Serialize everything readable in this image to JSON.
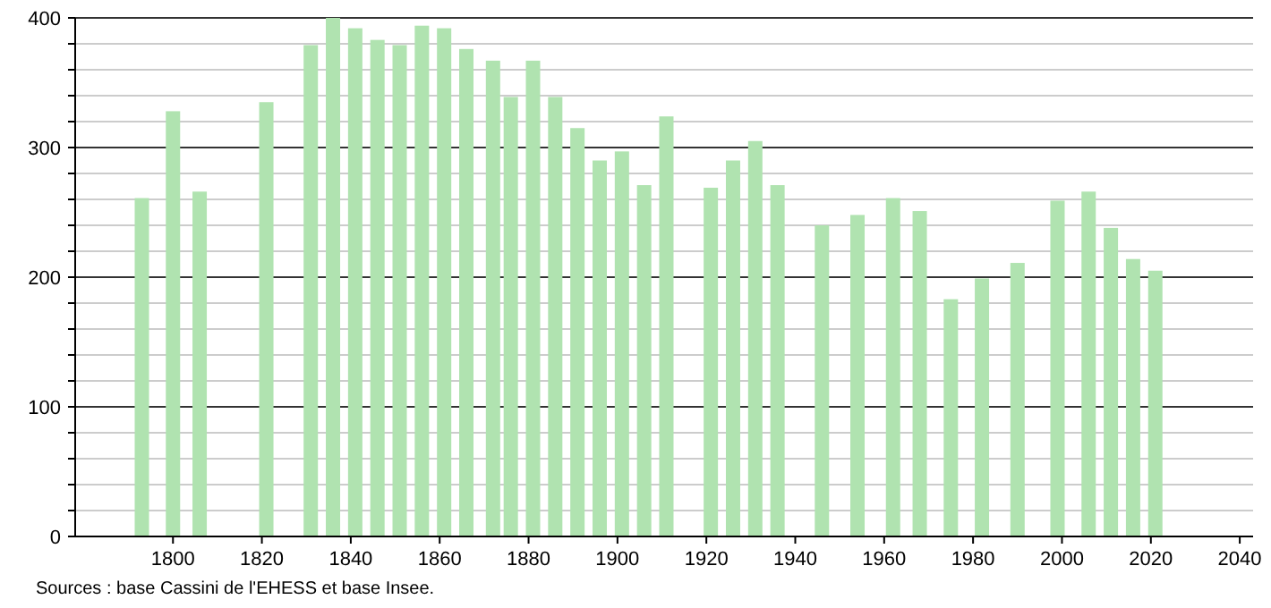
{
  "chart_data": {
    "type": "bar",
    "x": [
      1793,
      1800,
      1806,
      1821,
      1831,
      1836,
      1841,
      1846,
      1851,
      1856,
      1861,
      1866,
      1872,
      1876,
      1881,
      1886,
      1891,
      1896,
      1901,
      1906,
      1911,
      1921,
      1926,
      1931,
      1936,
      1946,
      1954,
      1962,
      1968,
      1975,
      1982,
      1990,
      1999,
      2006,
      2011,
      2016,
      2021
    ],
    "values": [
      261,
      328,
      266,
      335,
      379,
      400,
      392,
      383,
      379,
      394,
      392,
      376,
      367,
      339,
      367,
      339,
      315,
      290,
      297,
      271,
      324,
      269,
      290,
      305,
      271,
      240,
      248,
      261,
      251,
      183,
      199,
      211,
      259,
      266,
      238,
      214,
      205
    ],
    "color": "#b0e3b0",
    "xlim": [
      1778,
      2043
    ],
    "xticks": [
      1800,
      1820,
      1840,
      1860,
      1880,
      1900,
      1920,
      1940,
      1960,
      1980,
      2000,
      2020,
      2040
    ],
    "ylim": [
      0,
      400
    ],
    "yticks": [
      0,
      {
        "value": 20,
        "label": null
      },
      {
        "value": 40,
        "label": null
      },
      {
        "value": 60,
        "label": null
      },
      {
        "value": 80,
        "label": null
      },
      100,
      {
        "value": 120,
        "label": null
      },
      {
        "value": 140,
        "label": null
      },
      {
        "value": 160,
        "label": null
      },
      {
        "value": 180,
        "label": null
      },
      200,
      {
        "value": 220,
        "label": null
      },
      {
        "value": 240,
        "label": null
      },
      {
        "value": 260,
        "label": null
      },
      {
        "value": 280,
        "label": null
      },
      300,
      {
        "value": 320,
        "label": null
      },
      {
        "value": 340,
        "label": null
      },
      {
        "value": 360,
        "label": null
      },
      {
        "value": 380,
        "label": null
      },
      400
    ],
    "grid": "y",
    "annotations": [
      "Sources : base Cassini de l'EHESS et base Insee."
    ]
  }
}
